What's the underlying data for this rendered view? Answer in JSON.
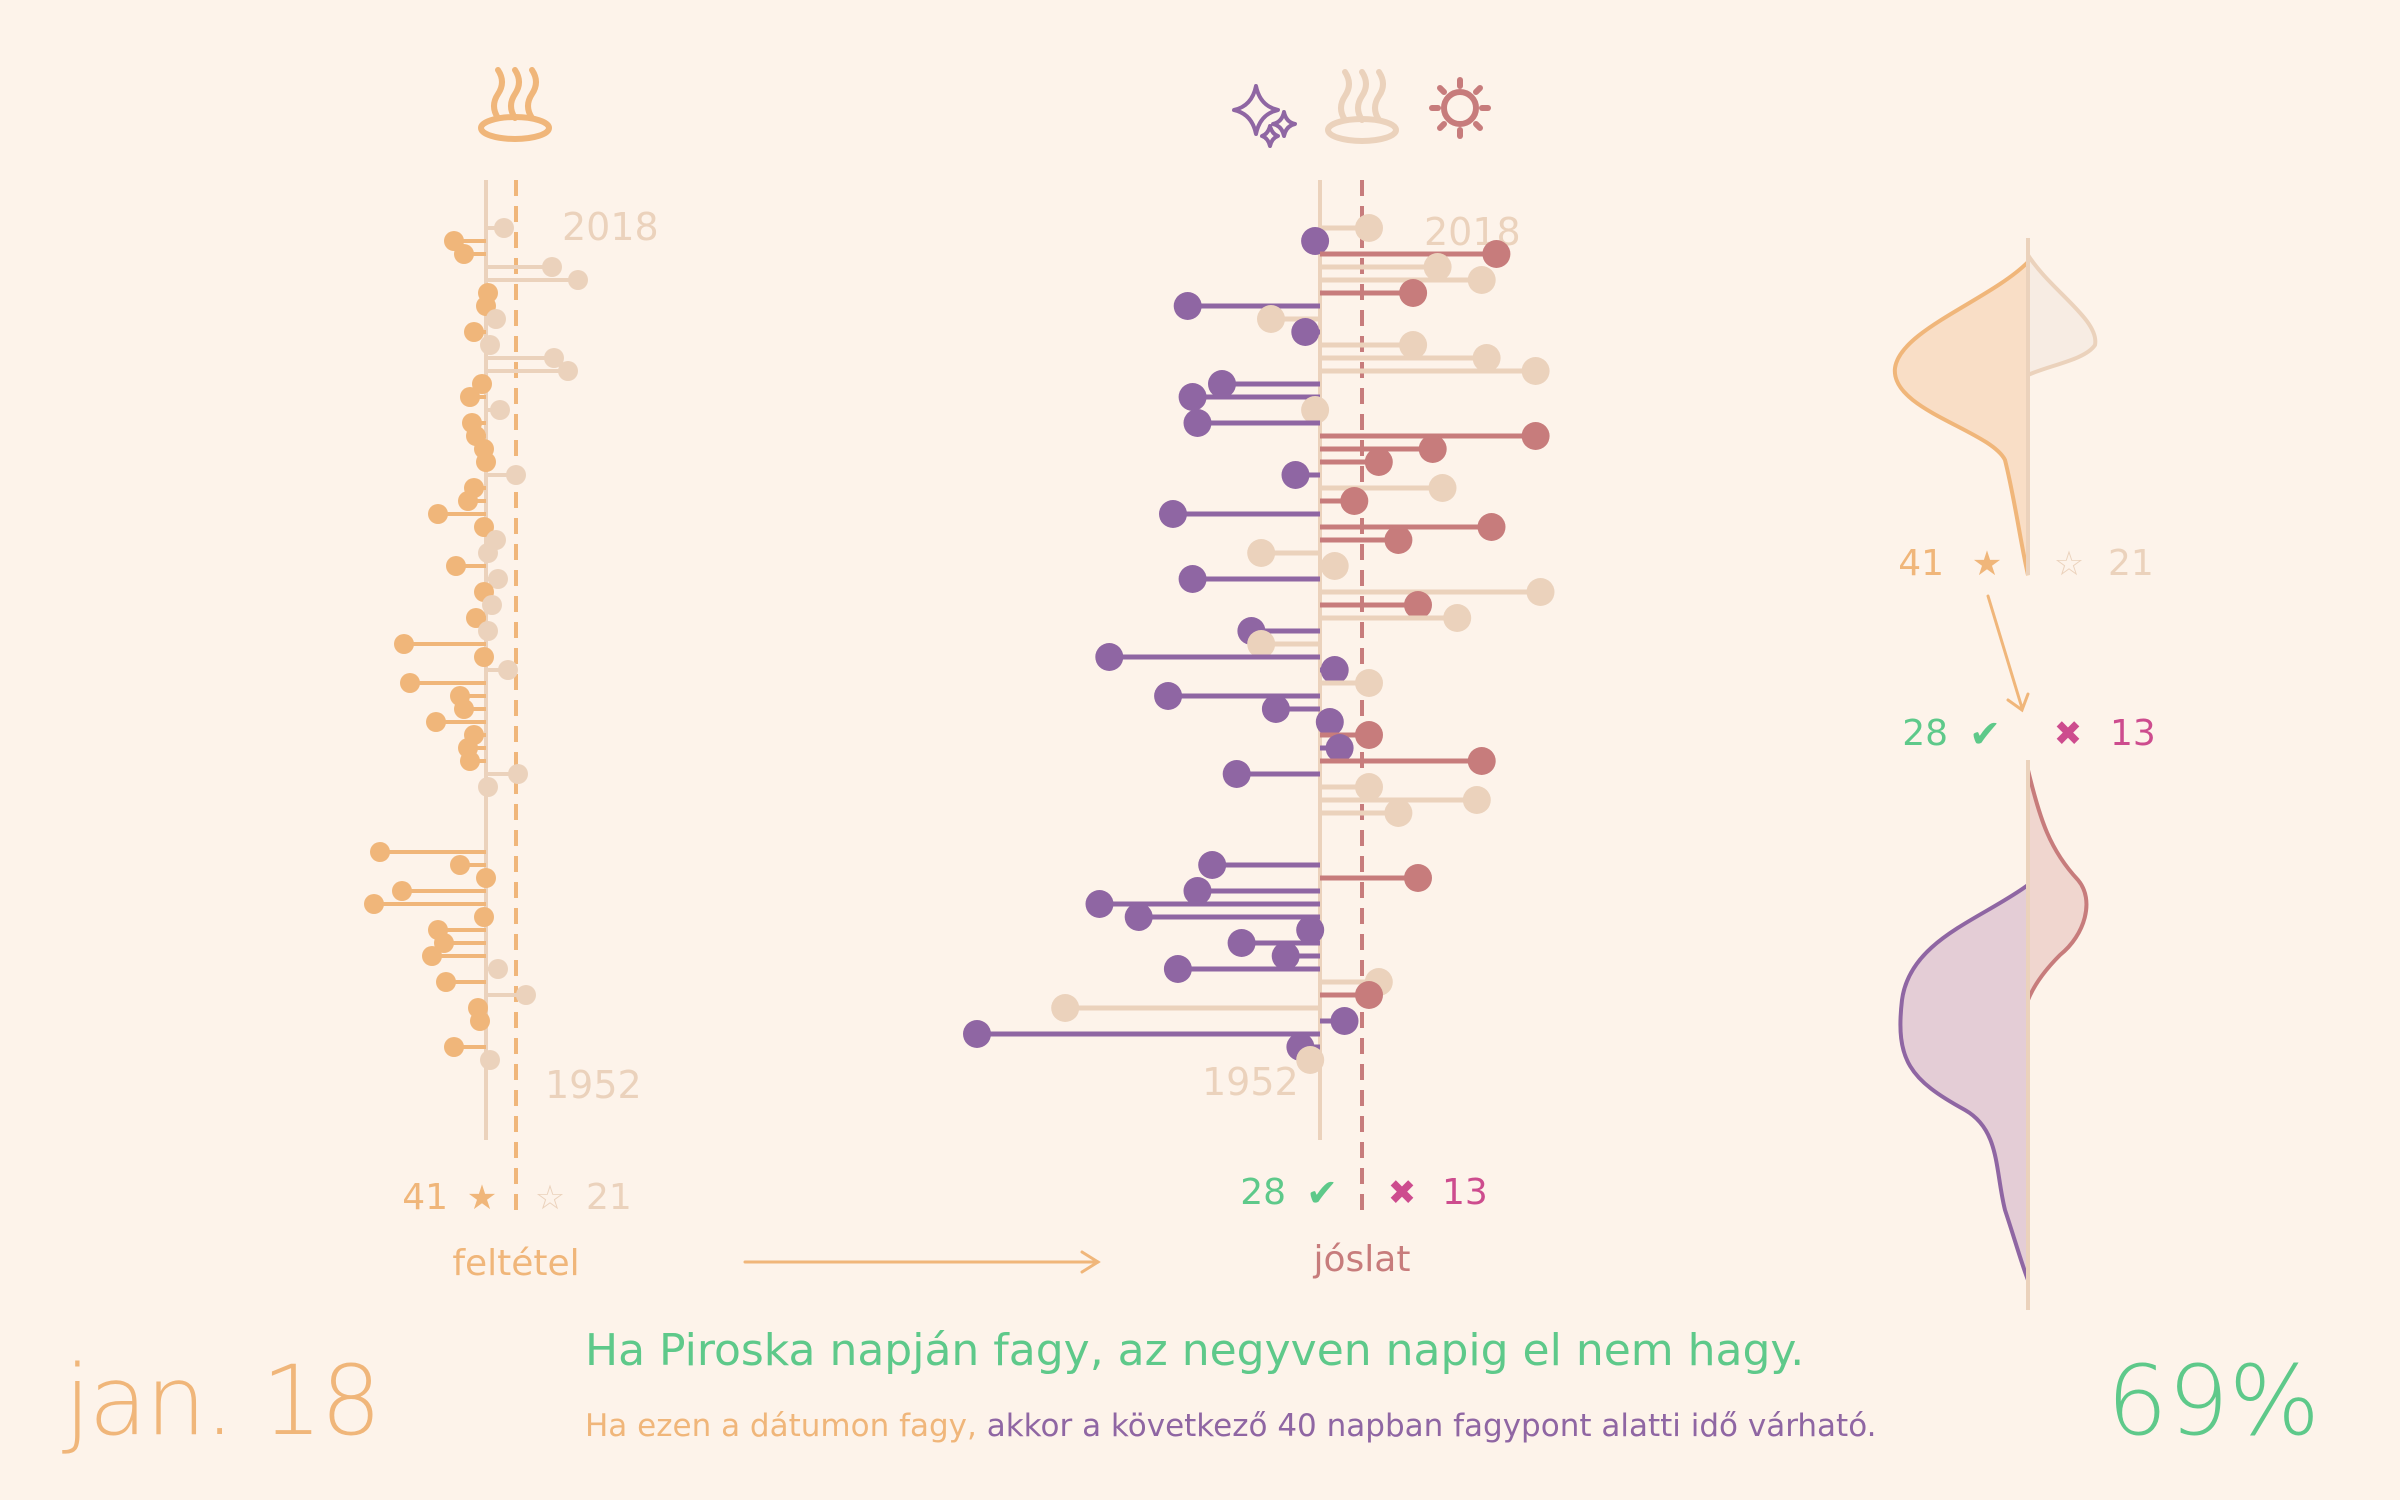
{
  "date": "jan. 18",
  "percentage": "69%",
  "proverb": "Ha Piroska napján fagy, az negyven napig el nem hagy.",
  "explanation": {
    "condition_part": "Ha ezen a dátumon fagy,",
    "prediction_part": " akkor a következő 40 napban fagypont alatti idő várható."
  },
  "condition_panel": {
    "label": "feltétel",
    "icon": "hot-springs-icon",
    "year_top": "2018",
    "year_bottom": "1952",
    "star_count": "41",
    "nostar_count": "21"
  },
  "prediction_panel": {
    "label": "jóslat",
    "icons": [
      "sparkles-icon",
      "hot-springs-icon",
      "sun-icon"
    ],
    "year_top": "2018",
    "year_bottom": "1952",
    "correct_count": "28",
    "wrong_count": "13"
  },
  "distribution_panel": {
    "star_count": "41",
    "nostar_count": "21",
    "correct_count": "28",
    "wrong_count": "13"
  },
  "colors": {
    "background": "#fdf3ea",
    "condition": "#f0b67a",
    "neutral": "#ebd2bc",
    "predicted_cold": "#8f66a3",
    "predicted_warm": "#c77c7c",
    "correct": "#5ec98a",
    "wrong": "#cd4c8e"
  },
  "chart_data": [
    {
      "type": "scatter",
      "title": "feltétel",
      "y_range": [
        1952,
        2018
      ],
      "points": [
        {
          "year": 2018,
          "value": 0.9,
          "cat": "neutral"
        },
        {
          "year": 2017,
          "value": -1.6,
          "cat": "frost"
        },
        {
          "year": 2016,
          "value": -1.1,
          "cat": "frost"
        },
        {
          "year": 2015,
          "value": 3.3,
          "cat": "neutral"
        },
        {
          "year": 2014,
          "value": 4.6,
          "cat": "neutral"
        },
        {
          "year": 2013,
          "value": 0.1,
          "cat": "frost"
        },
        {
          "year": 2012,
          "value": 0.0,
          "cat": "frost"
        },
        {
          "year": 2011,
          "value": 0.5,
          "cat": "neutral"
        },
        {
          "year": 2010,
          "value": -0.6,
          "cat": "frost"
        },
        {
          "year": 2009,
          "value": 0.2,
          "cat": "neutral"
        },
        {
          "year": 2008,
          "value": 3.4,
          "cat": "neutral"
        },
        {
          "year": 2007,
          "value": 4.1,
          "cat": "neutral"
        },
        {
          "year": 2006,
          "value": -0.2,
          "cat": "frost"
        },
        {
          "year": 2005,
          "value": -0.8,
          "cat": "frost"
        },
        {
          "year": 2004,
          "value": 0.7,
          "cat": "neutral"
        },
        {
          "year": 2003,
          "value": -0.7,
          "cat": "frost"
        },
        {
          "year": 2002,
          "value": -0.5,
          "cat": "frost"
        },
        {
          "year": 2001,
          "value": -0.1,
          "cat": "frost"
        },
        {
          "year": 2000,
          "value": 0.0,
          "cat": "frost"
        },
        {
          "year": 1999,
          "value": 1.5,
          "cat": "neutral"
        },
        {
          "year": 1998,
          "value": -0.6,
          "cat": "frost"
        },
        {
          "year": 1997,
          "value": -0.9,
          "cat": "frost"
        },
        {
          "year": 1996,
          "value": -2.4,
          "cat": "frost"
        },
        {
          "year": 1995,
          "value": -0.1,
          "cat": "frost"
        },
        {
          "year": 1994,
          "value": 0.5,
          "cat": "neutral"
        },
        {
          "year": 1993,
          "value": 0.1,
          "cat": "neutral"
        },
        {
          "year": 1992,
          "value": -1.5,
          "cat": "frost"
        },
        {
          "year": 1991,
          "value": 0.6,
          "cat": "neutral"
        },
        {
          "year": 1990,
          "value": -0.1,
          "cat": "frost"
        },
        {
          "year": 1989,
          "value": 0.3,
          "cat": "neutral"
        },
        {
          "year": 1988,
          "value": -0.5,
          "cat": "frost"
        },
        {
          "year": 1987,
          "value": 0.1,
          "cat": "neutral"
        },
        {
          "year": 1986,
          "value": -4.1,
          "cat": "frost"
        },
        {
          "year": 1985,
          "value": -0.1,
          "cat": "frost"
        },
        {
          "year": 1984,
          "value": 1.1,
          "cat": "neutral"
        },
        {
          "year": 1983,
          "value": -3.8,
          "cat": "frost"
        },
        {
          "year": 1982,
          "value": -1.3,
          "cat": "frost"
        },
        {
          "year": 1981,
          "value": -1.1,
          "cat": "frost"
        },
        {
          "year": 1980,
          "value": -2.5,
          "cat": "frost"
        },
        {
          "year": 1979,
          "value": -0.6,
          "cat": "frost"
        },
        {
          "year": 1978,
          "value": -0.9,
          "cat": "frost"
        },
        {
          "year": 1977,
          "value": -0.8,
          "cat": "frost"
        },
        {
          "year": 1976,
          "value": 1.6,
          "cat": "neutral"
        },
        {
          "year": 1975,
          "value": 0.1,
          "cat": "neutral"
        },
        {
          "year": 1970,
          "value": -5.3,
          "cat": "frost"
        },
        {
          "year": 1969,
          "value": -1.3,
          "cat": "frost"
        },
        {
          "year": 1968,
          "value": 0.0,
          "cat": "frost"
        },
        {
          "year": 1967,
          "value": -4.2,
          "cat": "frost"
        },
        {
          "year": 1966,
          "value": -5.6,
          "cat": "frost"
        },
        {
          "year": 1965,
          "value": -0.1,
          "cat": "frost"
        },
        {
          "year": 1964,
          "value": -2.4,
          "cat": "frost"
        },
        {
          "year": 1963,
          "value": -2.1,
          "cat": "frost"
        },
        {
          "year": 1962,
          "value": -2.7,
          "cat": "frost"
        },
        {
          "year": 1961,
          "value": 0.6,
          "cat": "neutral"
        },
        {
          "year": 1960,
          "value": -2.0,
          "cat": "frost"
        },
        {
          "year": 1959,
          "value": 2.0,
          "cat": "neutral"
        },
        {
          "year": 1958,
          "value": -0.4,
          "cat": "frost"
        },
        {
          "year": 1957,
          "value": -0.3,
          "cat": "frost"
        },
        {
          "year": 1955,
          "value": -1.6,
          "cat": "frost"
        },
        {
          "year": 1954,
          "value": 0.2,
          "cat": "neutral"
        }
      ]
    },
    {
      "type": "scatter",
      "title": "jóslat",
      "y_range": [
        1952,
        2018
      ],
      "points": [
        {
          "year": 2018,
          "value": 1.0,
          "cat": "neutral"
        },
        {
          "year": 2017,
          "value": -0.1,
          "cat": "cold"
        },
        {
          "year": 2016,
          "value": 3.6,
          "cat": "warm"
        },
        {
          "year": 2015,
          "value": 2.4,
          "cat": "neutral"
        },
        {
          "year": 2014,
          "value": 3.3,
          "cat": "neutral"
        },
        {
          "year": 2013,
          "value": 1.9,
          "cat": "warm"
        },
        {
          "year": 2012,
          "value": -2.7,
          "cat": "cold"
        },
        {
          "year": 2011,
          "value": -1.0,
          "cat": "neutral"
        },
        {
          "year": 2010,
          "value": -0.3,
          "cat": "cold"
        },
        {
          "year": 2009,
          "value": 1.9,
          "cat": "neutral"
        },
        {
          "year": 2008,
          "value": 3.4,
          "cat": "neutral"
        },
        {
          "year": 2007,
          "value": 4.4,
          "cat": "neutral"
        },
        {
          "year": 2006,
          "value": -2.0,
          "cat": "cold"
        },
        {
          "year": 2005,
          "value": -2.6,
          "cat": "cold"
        },
        {
          "year": 2004,
          "value": -0.1,
          "cat": "neutral"
        },
        {
          "year": 2003,
          "value": -2.5,
          "cat": "cold"
        },
        {
          "year": 2002,
          "value": 4.4,
          "cat": "warm"
        },
        {
          "year": 2001,
          "value": 2.3,
          "cat": "warm"
        },
        {
          "year": 2000,
          "value": 1.2,
          "cat": "warm"
        },
        {
          "year": 1999,
          "value": -0.5,
          "cat": "cold"
        },
        {
          "year": 1998,
          "value": 2.5,
          "cat": "neutral"
        },
        {
          "year": 1997,
          "value": 0.7,
          "cat": "warm"
        },
        {
          "year": 1996,
          "value": -3.0,
          "cat": "cold"
        },
        {
          "year": 1995,
          "value": 3.5,
          "cat": "warm"
        },
        {
          "year": 1994,
          "value": 1.6,
          "cat": "warm"
        },
        {
          "year": 1993,
          "value": -1.2,
          "cat": "neutral"
        },
        {
          "year": 1992,
          "value": 0.3,
          "cat": "neutral"
        },
        {
          "year": 1991,
          "value": -2.6,
          "cat": "cold"
        },
        {
          "year": 1990,
          "value": 4.5,
          "cat": "neutral"
        },
        {
          "year": 1989,
          "value": 2.0,
          "cat": "warm"
        },
        {
          "year": 1988,
          "value": 2.8,
          "cat": "neutral"
        },
        {
          "year": 1987,
          "value": -1.4,
          "cat": "cold"
        },
        {
          "year": 1986,
          "value": -1.2,
          "cat": "neutral"
        },
        {
          "year": 1985,
          "value": -4.3,
          "cat": "cold"
        },
        {
          "year": 1984,
          "value": 0.3,
          "cat": "cold"
        },
        {
          "year": 1983,
          "value": 1.0,
          "cat": "neutral"
        },
        {
          "year": 1982,
          "value": -3.1,
          "cat": "cold"
        },
        {
          "year": 1981,
          "value": -0.9,
          "cat": "cold"
        },
        {
          "year": 1980,
          "value": 0.2,
          "cat": "cold"
        },
        {
          "year": 1979,
          "value": 1.0,
          "cat": "warm"
        },
        {
          "year": 1978,
          "value": 0.4,
          "cat": "cold"
        },
        {
          "year": 1977,
          "value": 3.3,
          "cat": "warm"
        },
        {
          "year": 1976,
          "value": -1.7,
          "cat": "cold"
        },
        {
          "year": 1975,
          "value": 1.0,
          "cat": "neutral"
        },
        {
          "year": 1974,
          "value": 3.2,
          "cat": "neutral"
        },
        {
          "year": 1973,
          "value": 1.6,
          "cat": "neutral"
        },
        {
          "year": 1969,
          "value": -2.2,
          "cat": "cold"
        },
        {
          "year": 1968,
          "value": 2.0,
          "cat": "warm"
        },
        {
          "year": 1967,
          "value": -2.5,
          "cat": "cold"
        },
        {
          "year": 1966,
          "value": -4.5,
          "cat": "cold"
        },
        {
          "year": 1965,
          "value": -3.7,
          "cat": "cold"
        },
        {
          "year": 1964,
          "value": -0.2,
          "cat": "cold"
        },
        {
          "year": 1963,
          "value": -1.6,
          "cat": "cold"
        },
        {
          "year": 1962,
          "value": -0.7,
          "cat": "cold"
        },
        {
          "year": 1961,
          "value": -2.9,
          "cat": "cold"
        },
        {
          "year": 1960,
          "value": 1.2,
          "cat": "neutral"
        },
        {
          "year": 1959,
          "value": 1.0,
          "cat": "warm"
        },
        {
          "year": 1958,
          "value": -5.2,
          "cat": "neutral"
        },
        {
          "year": 1957,
          "value": 0.5,
          "cat": "cold"
        },
        {
          "year": 1956,
          "value": -7.0,
          "cat": "cold"
        },
        {
          "year": 1955,
          "value": -0.4,
          "cat": "cold"
        },
        {
          "year": 1954,
          "value": -0.2,
          "cat": "neutral"
        }
      ]
    }
  ]
}
